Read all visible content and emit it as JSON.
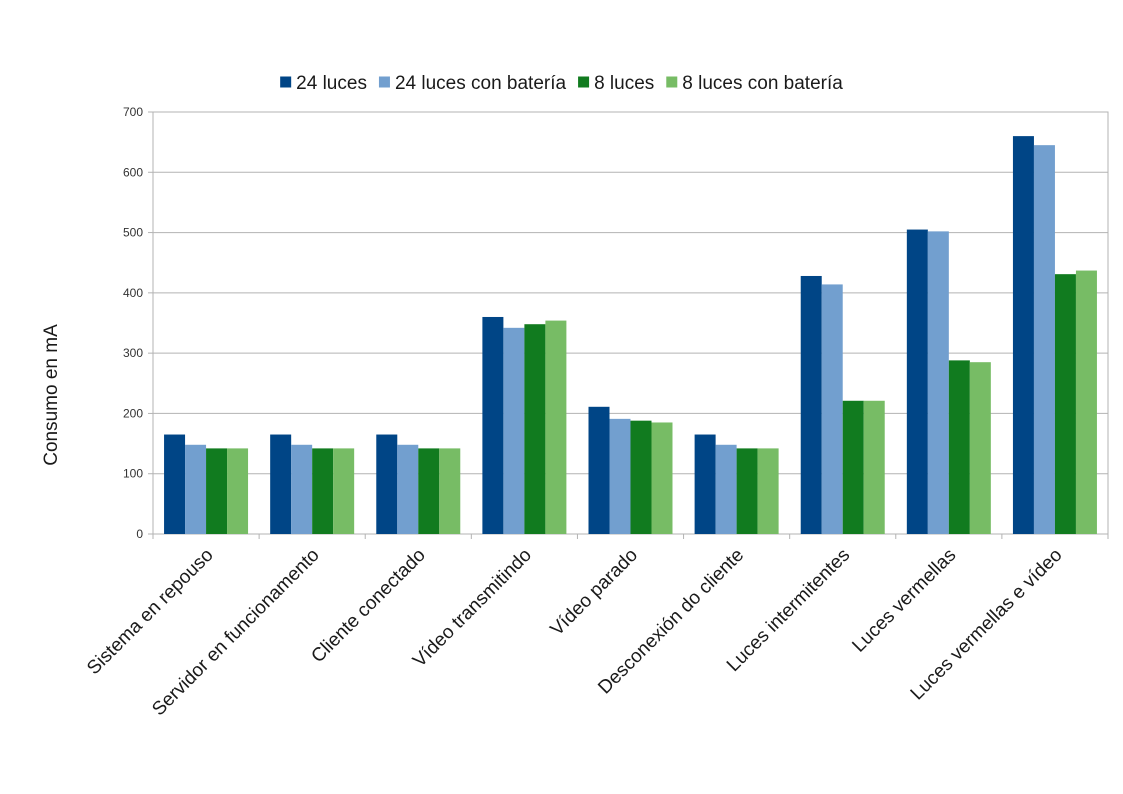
{
  "chart_data": {
    "type": "bar",
    "title": "",
    "xlabel": "",
    "ylabel": "Consumo en mA",
    "ylim": [
      0,
      700
    ],
    "yticks": [
      0,
      100,
      200,
      300,
      400,
      500,
      600,
      700
    ],
    "grid": true,
    "legend_position": "top",
    "categories": [
      "Sistema en repouso",
      "Servidor en funcionamento",
      "Cliente conectado",
      "Vídeo transmitindo",
      "Vídeo parado",
      "Desconexión do cliente",
      "Luces intermitentes",
      "Luces vermellas",
      "Luces vermellas e vídeo"
    ],
    "series": [
      {
        "name": "24 luces",
        "color": "#004586",
        "values": [
          165,
          165,
          165,
          360,
          211,
          165,
          428,
          505,
          660
        ]
      },
      {
        "name": "24 luces con batería",
        "color": "#729fcf",
        "values": [
          148,
          148,
          148,
          342,
          191,
          148,
          414,
          502,
          645
        ]
      },
      {
        "name": "8 luces",
        "color": "#117b1f",
        "values": [
          142,
          142,
          142,
          348,
          188,
          142,
          221,
          288,
          431
        ]
      },
      {
        "name": "8 luces con batería",
        "color": "#77bc65",
        "values": [
          142,
          142,
          142,
          354,
          185,
          142,
          221,
          285,
          437
        ]
      }
    ]
  }
}
